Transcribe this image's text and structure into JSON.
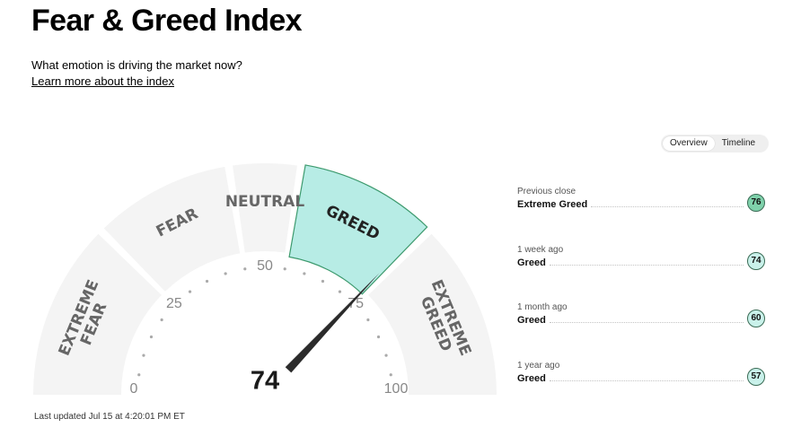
{
  "header": {
    "title": "Fear & Greed Index",
    "subtitle": "What emotion is driving the market now?",
    "learn_more": "Learn more about the index"
  },
  "view_toggle": {
    "options": [
      "Overview",
      "Timeline"
    ],
    "selected": "Overview"
  },
  "gauge": {
    "score": 74,
    "rating": "GREED",
    "zones": [
      {
        "lines": [
          "EXTREME",
          "FEAR"
        ],
        "from": 0,
        "to": 25
      },
      {
        "lines": [
          "FEAR"
        ],
        "from": 25,
        "to": 45
      },
      {
        "lines": [
          "NEUTRAL"
        ],
        "from": 45,
        "to": 55
      },
      {
        "lines": [
          "GREED"
        ],
        "from": 55,
        "to": 75,
        "active": true
      },
      {
        "lines": [
          "EXTREME",
          "GREED"
        ],
        "from": 75,
        "to": 100
      }
    ],
    "ticks": [
      "0",
      "25",
      "50",
      "75",
      "100"
    ],
    "active_color": "#b7ece5",
    "active_border": "#3d9a6e",
    "zone_color": "#f4f4f4"
  },
  "last_updated": "Last updated Jul 15 at 4:20:01 PM ET",
  "history": [
    {
      "period": "Previous close",
      "rating": "Extreme Greed",
      "score": "76",
      "color": "#7fd1ab"
    },
    {
      "period": "1 week ago",
      "rating": "Greed",
      "score": "74",
      "color": "#c9f1ea"
    },
    {
      "period": "1 month ago",
      "rating": "Greed",
      "score": "60",
      "color": "#c9f1ea"
    },
    {
      "period": "1 year ago",
      "rating": "Greed",
      "score": "57",
      "color": "#c9f1ea"
    }
  ]
}
